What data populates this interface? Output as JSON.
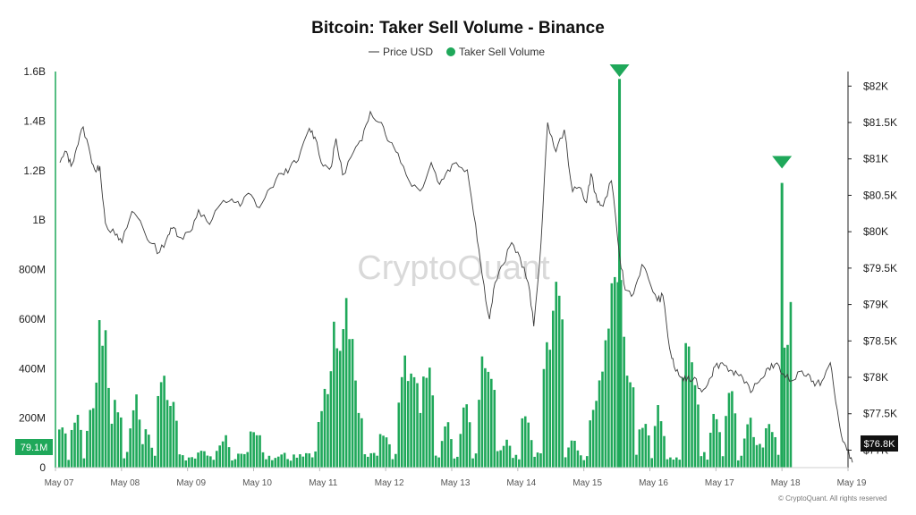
{
  "chart_data": {
    "type": "bar+line",
    "title": "Bitcoin: Taker Sell Volume - Binance",
    "legend": [
      {
        "name": "Price USD",
        "style": "line",
        "color": "#444444"
      },
      {
        "name": "Taker Sell Volume",
        "style": "dot",
        "color": "#1fa85a"
      }
    ],
    "legend_placement": "top-center",
    "x_tick_labels": [
      "May 07",
      "May 08",
      "May 09",
      "May 10",
      "May 11",
      "May 12",
      "May 13",
      "May 14",
      "May 15",
      "May 16",
      "May 17",
      "May 18",
      "May 19"
    ],
    "x_range_days": [
      0,
      12
    ],
    "left_axis": {
      "ticks": [
        0,
        200,
        400,
        600,
        800,
        1000,
        1200,
        1400,
        1600
      ],
      "tick_labels": [
        "0",
        "200M",
        "400M",
        "600M",
        "800M",
        "1B",
        "1.2B",
        "1.4B",
        "1.6B"
      ],
      "range": [
        0,
        1600
      ],
      "unit": "M"
    },
    "right_axis": {
      "ticks": [
        77000,
        77500,
        78000,
        78500,
        79000,
        79500,
        80000,
        80500,
        81000,
        81500,
        82000
      ],
      "tick_labels": [
        "$77K",
        "$77.5K",
        "$78K",
        "$78.5K",
        "$79K",
        "$79.5K",
        "$80K",
        "$80.5K",
        "$81K",
        "$81.5K",
        "$82K"
      ],
      "range": [
        76760,
        82200
      ]
    },
    "current_volume_label": "79.1M",
    "current_price_label": "$76.8K",
    "spike_markers_day": [
      8.54,
      11.0
    ],
    "volume_series": [
      {
        "name": "Taker Sell Volume",
        "color": "#1fa85a",
        "peaks": [
          {
            "day": 0.08,
            "value": 190
          },
          {
            "day": 0.3,
            "value": 230
          },
          {
            "day": 0.55,
            "value": 300
          },
          {
            "day": 0.65,
            "value": 530
          },
          {
            "day": 0.72,
            "value": 540
          },
          {
            "day": 0.9,
            "value": 280
          },
          {
            "day": 1.2,
            "value": 300
          },
          {
            "day": 1.35,
            "value": 150
          },
          {
            "day": 1.62,
            "value": 440
          },
          {
            "day": 1.75,
            "value": 260
          },
          {
            "day": 2.2,
            "value": 80
          },
          {
            "day": 2.55,
            "value": 130
          },
          {
            "day": 3.0,
            "value": 190
          },
          {
            "day": 3.4,
            "value": 60
          },
          {
            "day": 3.7,
            "value": 60
          },
          {
            "day": 4.05,
            "value": 300
          },
          {
            "day": 4.2,
            "value": 620
          },
          {
            "day": 4.3,
            "value": 580
          },
          {
            "day": 4.38,
            "value": 620
          },
          {
            "day": 4.45,
            "value": 540
          },
          {
            "day": 4.55,
            "value": 300
          },
          {
            "day": 4.95,
            "value": 160
          },
          {
            "day": 5.25,
            "value": 450
          },
          {
            "day": 5.35,
            "value": 470
          },
          {
            "day": 5.45,
            "value": 330
          },
          {
            "day": 5.62,
            "value": 480
          },
          {
            "day": 5.9,
            "value": 190
          },
          {
            "day": 6.2,
            "value": 270
          },
          {
            "day": 6.45,
            "value": 420
          },
          {
            "day": 6.55,
            "value": 500
          },
          {
            "day": 6.8,
            "value": 120
          },
          {
            "day": 7.1,
            "value": 230
          },
          {
            "day": 7.45,
            "value": 620
          },
          {
            "day": 7.58,
            "value": 850
          },
          {
            "day": 7.8,
            "value": 120
          },
          {
            "day": 8.15,
            "value": 300
          },
          {
            "day": 8.3,
            "value": 560
          },
          {
            "day": 8.4,
            "value": 840
          },
          {
            "day": 8.5,
            "value": 880
          },
          {
            "day": 8.6,
            "value": 500
          },
          {
            "day": 8.68,
            "value": 380
          },
          {
            "day": 8.9,
            "value": 230
          },
          {
            "day": 9.12,
            "value": 240
          },
          {
            "day": 9.54,
            "value": 560
          },
          {
            "day": 9.62,
            "value": 480
          },
          {
            "day": 9.98,
            "value": 240
          },
          {
            "day": 10.2,
            "value": 370
          },
          {
            "day": 10.5,
            "value": 200
          },
          {
            "day": 10.65,
            "value": 110
          },
          {
            "day": 10.8,
            "value": 200
          },
          {
            "day": 11.06,
            "value": 620
          },
          {
            "day": 11.12,
            "value": 600
          },
          {
            "day": 11.2,
            "value": 140
          }
        ]
      },
      {
        "name": "Spike bars",
        "color": "#1fa85a",
        "bars": [
          {
            "day": 8.54,
            "value": 1570
          },
          {
            "day": 11.0,
            "value": 1150
          }
        ]
      }
    ],
    "price_series": {
      "name": "Price USD",
      "color": "#444444",
      "points": [
        [
          0.0,
          80950
        ],
        [
          0.12,
          81100
        ],
        [
          0.2,
          80900
        ],
        [
          0.3,
          81150
        ],
        [
          0.42,
          81440
        ],
        [
          0.55,
          81050
        ],
        [
          0.65,
          80820
        ],
        [
          0.72,
          80900
        ],
        [
          0.82,
          80120
        ],
        [
          1.0,
          79950
        ],
        [
          1.12,
          79850
        ],
        [
          1.3,
          80280
        ],
        [
          1.45,
          80150
        ],
        [
          1.62,
          79850
        ],
        [
          1.8,
          79720
        ],
        [
          1.95,
          79950
        ],
        [
          2.05,
          80060
        ],
        [
          2.18,
          79920
        ],
        [
          2.35,
          80000
        ],
        [
          2.5,
          80300
        ],
        [
          2.7,
          80100
        ],
        [
          2.9,
          80380
        ],
        [
          3.1,
          80450
        ],
        [
          3.25,
          80350
        ],
        [
          3.4,
          80530
        ],
        [
          3.6,
          80330
        ],
        [
          3.8,
          80600
        ],
        [
          4.0,
          80800
        ],
        [
          4.15,
          80880
        ],
        [
          4.3,
          80980
        ],
        [
          4.5,
          81420
        ],
        [
          4.6,
          81300
        ],
        [
          4.75,
          80900
        ],
        [
          4.9,
          80900
        ],
        [
          4.98,
          81280
        ],
        [
          5.1,
          80780
        ],
        [
          5.3,
          81100
        ],
        [
          5.45,
          81250
        ],
        [
          5.6,
          81650
        ],
        [
          5.8,
          81500
        ],
        [
          5.95,
          81230
        ],
        [
          6.1,
          81080
        ],
        [
          6.3,
          80700
        ],
        [
          6.5,
          80560
        ],
        [
          6.7,
          80950
        ],
        [
          6.85,
          80650
        ],
        [
          7.0,
          80850
        ],
        [
          7.15,
          80950
        ],
        [
          7.35,
          80850
        ],
        [
          7.5,
          80100
        ],
        [
          7.62,
          79400
        ],
        [
          7.75,
          78800
        ],
        [
          7.85,
          79300
        ],
        [
          8.0,
          79550
        ],
        [
          8.15,
          79850
        ],
        [
          8.3,
          79650
        ],
        [
          8.45,
          79300
        ],
        [
          8.55,
          78700
        ],
        [
          8.68,
          79850
        ],
        [
          8.8,
          81500
        ],
        [
          8.95,
          81100
        ],
        [
          9.1,
          81400
        ],
        [
          9.25,
          80550
        ],
        [
          9.4,
          80600
        ],
        [
          9.5,
          80400
        ],
        [
          9.58,
          80800
        ],
        [
          9.7,
          80400
        ],
        [
          9.8,
          80350
        ],
        [
          9.95,
          80700
        ],
        [
          10.1,
          79650
        ],
        [
          10.2,
          79200
        ],
        [
          10.35,
          79150
        ],
        [
          10.5,
          79550
        ],
        [
          10.62,
          79350
        ],
        [
          10.78,
          79050
        ],
        [
          10.88,
          79120
        ],
        [
          11.0,
          78400
        ],
        [
          11.08,
          78150
        ],
        [
          11.2,
          78000
        ],
        [
          11.3,
          77950
        ],
        [
          11.45,
          78000
        ],
        [
          11.58,
          77800
        ],
        [
          11.72,
          77980
        ],
        [
          11.82,
          78150
        ],
        [
          11.95,
          78200
        ],
        [
          12.1,
          78100
        ],
        [
          12.22,
          78050
        ],
        [
          12.35,
          77920
        ],
        [
          12.5,
          77820
        ],
        [
          12.65,
          77980
        ],
        [
          12.78,
          78130
        ],
        [
          12.9,
          78180
        ],
        [
          13.05,
          78050
        ],
        [
          13.2,
          77950
        ],
        [
          13.35,
          78080
        ],
        [
          13.5,
          78050
        ],
        [
          13.62,
          77880
        ],
        [
          13.75,
          77950
        ],
        [
          13.9,
          78200
        ],
        [
          14.0,
          77650
        ],
        [
          14.1,
          77200
        ],
        [
          14.2,
          77000
        ],
        [
          14.3,
          76830
        ]
      ]
    }
  },
  "watermark": "CryptoQuant",
  "credit": "© CryptoQuant. All rights reserved"
}
